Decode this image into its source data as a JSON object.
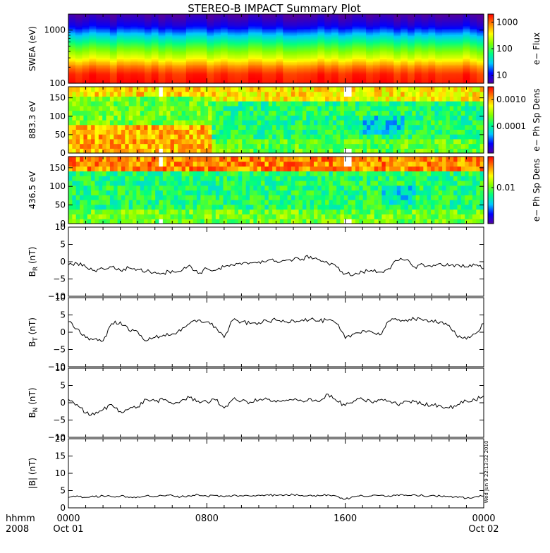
{
  "title": "STEREO-B IMPACT Summary Plot",
  "timestamp_note": "Wed Jun 9 22:13:32 2010",
  "x_axis": {
    "row_label_1": "hhmm",
    "row_label_2": "2008",
    "ticks": [
      {
        "hour": 0,
        "label": "0000",
        "sublabel": "Oct 01"
      },
      {
        "hour": 8,
        "label": "0800",
        "sublabel": ""
      },
      {
        "hour": 16,
        "label": "1600",
        "sublabel": ""
      },
      {
        "hour": 24,
        "label": "0000",
        "sublabel": "Oct 02"
      }
    ],
    "range_hours": [
      0,
      24
    ]
  },
  "colors": {
    "colormap": [
      "#5000a0",
      "#0000ff",
      "#00c8ff",
      "#00ff80",
      "#80ff00",
      "#ffff00",
      "#ff8000",
      "#ff0000"
    ],
    "line": "#000000",
    "gap": "#ffffff"
  },
  "chart_data": [
    {
      "type": "heatmap",
      "id": "swea",
      "ylabel": "SWEA (eV)",
      "yscale": "log",
      "ylim": [
        100,
        2000
      ],
      "yticks": [
        100,
        1000
      ],
      "ytick_labels": [
        "100",
        "1000"
      ],
      "colorbar": {
        "label": "e− Flux",
        "scale": "log",
        "range": [
          5,
          2000
        ],
        "ticks": [
          10,
          100,
          1000
        ],
        "tick_labels": [
          "10",
          "100",
          "1000"
        ]
      },
      "description_profile": {
        "energy_eV": [
          100,
          150,
          200,
          300,
          500,
          800,
          1200,
          2000
        ],
        "flux": [
          1800,
          1500,
          900,
          300,
          100,
          30,
          10,
          5
        ]
      }
    },
    {
      "type": "heatmap",
      "id": "pad_883",
      "ylabel": "883.3 eV",
      "ylim": [
        0,
        180
      ],
      "yticks": [
        0,
        50,
        100,
        150
      ],
      "ytick_labels": [
        "0",
        "50",
        "100",
        "150"
      ],
      "colorbar": {
        "label": "e− Ph Sp Dens",
        "scale": "log",
        "range": [
          1e-05,
          0.003
        ],
        "ticks": [
          0.0001,
          0.001
        ],
        "tick_labels": [
          "0.0001",
          "0.0010"
        ]
      },
      "data_gaps_hours": [
        [
          5.25,
          5.45
        ],
        [
          15.95,
          16.35
        ]
      ]
    },
    {
      "type": "heatmap",
      "id": "pad_436",
      "ylabel": "436.5 eV",
      "ylim": [
        0,
        180
      ],
      "yticks": [
        0,
        50,
        100,
        150
      ],
      "ytick_labels": [
        "0",
        "50",
        "100",
        "150"
      ],
      "colorbar": {
        "label": "e− Ph Sp Dens",
        "scale": "log",
        "range": [
          0.002,
          0.04
        ],
        "ticks": [
          0.01
        ],
        "tick_labels": [
          "0.01"
        ]
      },
      "data_gaps_hours": [
        [
          5.25,
          5.45
        ],
        [
          15.95,
          16.35
        ]
      ]
    },
    {
      "type": "line",
      "id": "br",
      "ylabel": "BR (nT)",
      "ylim": [
        -10,
        10
      ],
      "yticks": [
        -10,
        -5,
        0,
        5,
        10
      ],
      "ytick_labels": [
        "−10",
        "−5",
        "0",
        "5",
        "10"
      ],
      "x": [
        0,
        0.5,
        1,
        1.5,
        2,
        2.5,
        3,
        3.5,
        4,
        4.5,
        5,
        5.5,
        6,
        6.5,
        7,
        7.5,
        8,
        8.5,
        9,
        9.5,
        10,
        10.5,
        11,
        11.5,
        12,
        12.5,
        13,
        13.5,
        14,
        14.5,
        15,
        15.5,
        16,
        16.5,
        17,
        17.5,
        18,
        18.5,
        19,
        19.5,
        20,
        20.5,
        21,
        21.5,
        22,
        22.5,
        23,
        23.5,
        24
      ],
      "y": [
        -1,
        -0.5,
        -1.5,
        -2.5,
        -2,
        -1.5,
        -2.5,
        -1.8,
        -2.2,
        -2.8,
        -3,
        -3.3,
        -2.6,
        -2.8,
        -1,
        -3.4,
        -2,
        -2.5,
        -1.5,
        -1,
        -0.8,
        -0.3,
        0,
        0.3,
        0.2,
        0.3,
        0.6,
        0.8,
        1.5,
        0.6,
        -0.5,
        -1.5,
        -3.5,
        -3.8,
        -3,
        -2.5,
        -3,
        -2,
        0.3,
        0.5,
        -1.5,
        -0.8,
        -1.5,
        -0.5,
        -1.2,
        -0.8,
        -1.5,
        -1,
        -2
      ]
    },
    {
      "type": "line",
      "id": "bt",
      "ylabel": "BT (nT)",
      "ylim": [
        -10,
        10
      ],
      "yticks": [
        -10,
        -5,
        0,
        5,
        10
      ],
      "ytick_labels": [
        "−10",
        "−5",
        "0",
        "5",
        "10"
      ],
      "x": [
        0,
        0.5,
        1,
        1.5,
        2,
        2.5,
        3,
        3.5,
        4,
        4.5,
        5,
        5.5,
        6,
        6.5,
        7,
        7.5,
        8,
        8.5,
        9,
        9.5,
        10,
        10.5,
        11,
        11.5,
        12,
        12.5,
        13,
        13.5,
        14,
        14.5,
        15,
        15.5,
        16,
        16.5,
        17,
        17.5,
        18,
        18.5,
        19,
        19.5,
        20,
        20.5,
        21,
        21.5,
        22,
        22.5,
        23,
        23.5,
        24
      ],
      "y": [
        3,
        1,
        -1.5,
        -2,
        -2.5,
        2.5,
        3,
        0.5,
        0.2,
        -2.5,
        -1.5,
        -0.8,
        -0.5,
        0.3,
        2.5,
        3.5,
        3,
        1.5,
        -1.5,
        3.5,
        3,
        2.5,
        2.8,
        3.2,
        3.5,
        3,
        3.4,
        3.6,
        3.8,
        3.2,
        3.5,
        2.5,
        -1.8,
        -0.5,
        0.5,
        0.2,
        -0.8,
        3.2,
        3.5,
        3.6,
        3.8,
        3.4,
        3.5,
        3,
        2,
        -1.5,
        -2,
        -0.5,
        2.5
      ]
    },
    {
      "type": "line",
      "id": "bn",
      "ylabel": "BN (nT)",
      "ylim": [
        -10,
        10
      ],
      "yticks": [
        -10,
        -5,
        0,
        5,
        10
      ],
      "ytick_labels": [
        "−10",
        "−5",
        "0",
        "5",
        "10"
      ],
      "x": [
        0,
        0.5,
        1,
        1.5,
        2,
        2.5,
        3,
        3.5,
        4,
        4.5,
        5,
        5.5,
        6,
        6.5,
        7,
        7.5,
        8,
        8.5,
        9,
        9.5,
        10,
        10.5,
        11,
        11.5,
        12,
        12.5,
        13,
        13.5,
        14,
        14.5,
        15,
        15.5,
        16,
        16.5,
        17,
        17.5,
        18,
        18.5,
        19,
        19.5,
        20,
        20.5,
        21,
        21.5,
        22,
        22.5,
        23,
        23.5,
        24
      ],
      "y": [
        1,
        -0.5,
        -3,
        -3.5,
        -2,
        -0.5,
        -2.5,
        -1.8,
        -1.2,
        1,
        0.5,
        0.8,
        -0.3,
        0.5,
        1.5,
        0.5,
        0.3,
        0.8,
        -1.5,
        1,
        0.5,
        0.2,
        0.8,
        1,
        0.2,
        0.5,
        0.8,
        0.5,
        1.2,
        0.3,
        2.5,
        0.5,
        -0.8,
        0.5,
        1,
        0.2,
        0.8,
        0.5,
        -0.5,
        0.5,
        0.3,
        -0.5,
        -0.5,
        -0.8,
        -1.5,
        -0.5,
        0.5,
        0.8,
        2
      ]
    },
    {
      "type": "line",
      "id": "bmag",
      "ylabel": "|B| (nT)",
      "ylim": [
        0,
        20
      ],
      "yticks": [
        0,
        5,
        10,
        15,
        20
      ],
      "ytick_labels": [
        "0",
        "5",
        "10",
        "15",
        "20"
      ],
      "x": [
        0,
        0.5,
        1,
        1.5,
        2,
        2.5,
        3,
        3.5,
        4,
        4.5,
        5,
        5.5,
        6,
        6.5,
        7,
        7.5,
        8,
        8.5,
        9,
        9.5,
        10,
        10.5,
        11,
        11.5,
        12,
        12.5,
        13,
        13.5,
        14,
        14.5,
        15,
        15.5,
        16,
        16.5,
        17,
        17.5,
        18,
        18.5,
        19,
        19.5,
        20,
        20.5,
        21,
        21.5,
        22,
        22.5,
        23,
        23.5,
        24
      ],
      "y": [
        3,
        3.5,
        3,
        3.2,
        3.5,
        3.2,
        3.4,
        3,
        3.2,
        3.5,
        3.3,
        3.5,
        3.6,
        3.2,
        3.5,
        3.8,
        3.4,
        3.6,
        3.2,
        3.6,
        3.5,
        3.4,
        3.7,
        3.8,
        3.6,
        3.7,
        3.8,
        3.6,
        3.7,
        3.5,
        3.8,
        3.4,
        2.5,
        3.2,
        3.5,
        3.4,
        3.6,
        3.5,
        3.8,
        3.7,
        3.8,
        3.5,
        3.6,
        3.4,
        3.2,
        3,
        2.8,
        3.2,
        3.4
      ]
    }
  ]
}
